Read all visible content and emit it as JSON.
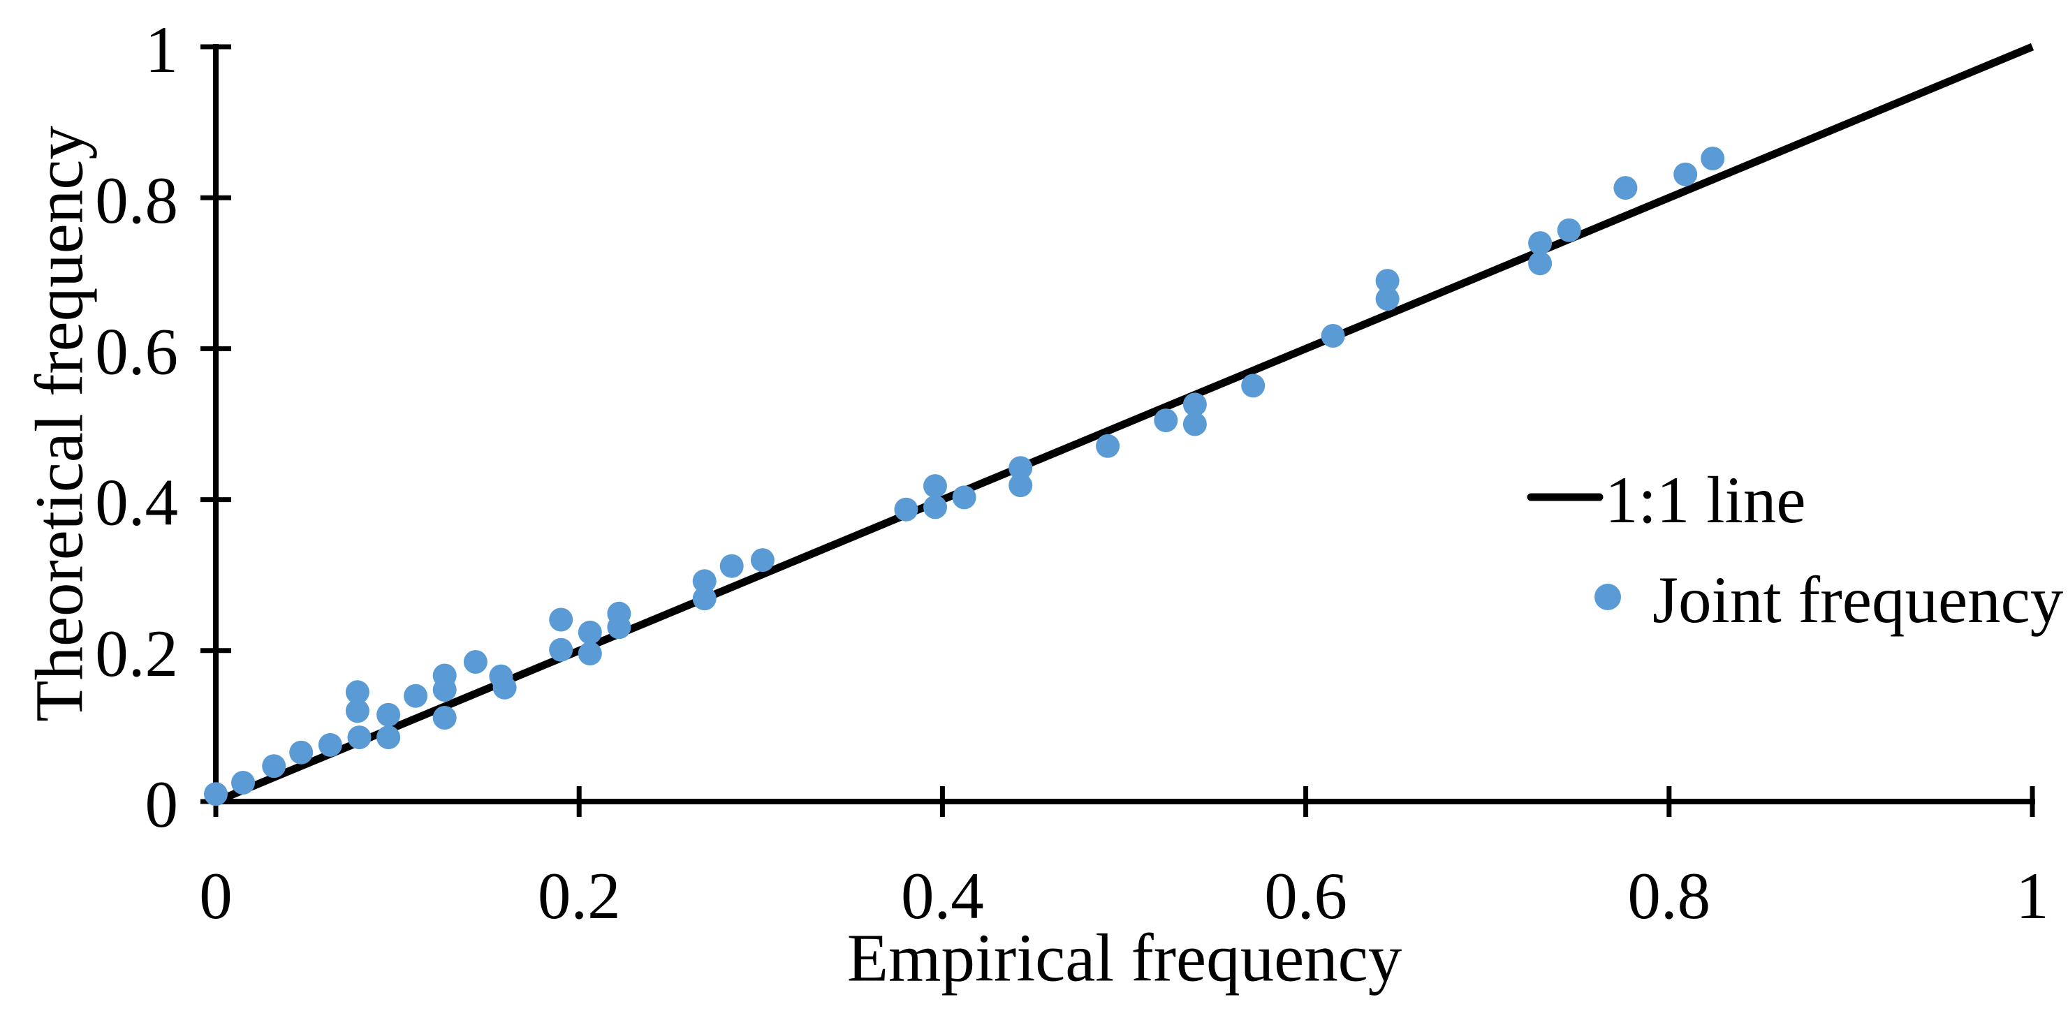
{
  "chart_data": {
    "type": "scatter",
    "title": "",
    "xlabel": "Empirical frequency",
    "ylabel": "Theoretical frequency",
    "xlim": [
      0,
      1
    ],
    "ylim": [
      0,
      1
    ],
    "x_ticks": [
      0,
      0.2,
      0.4,
      0.6,
      0.8,
      1
    ],
    "x_tick_labels": [
      "0",
      "0.2",
      "0.4",
      "0.6",
      "0.8",
      "1"
    ],
    "y_ticks": [
      0,
      0.2,
      0.4,
      0.6,
      0.8,
      1
    ],
    "y_tick_labels": [
      "0",
      "0.2",
      "0.4",
      "0.6",
      "0.8",
      "1"
    ],
    "grid": false,
    "legend_position": "middle-right",
    "colors": {
      "scatter": "#5B9BD5",
      "line": "#000000",
      "axis": "#000000"
    },
    "series": [
      {
        "name": "1:1 line",
        "type": "line",
        "color": "#000000",
        "points": [
          [
            0,
            0
          ],
          [
            1,
            1
          ]
        ]
      },
      {
        "name": "Joint frequency",
        "type": "scatter",
        "color": "#5B9BD5",
        "points": [
          [
            0.0,
            0.01
          ],
          [
            0.015,
            0.025
          ],
          [
            0.032,
            0.047
          ],
          [
            0.047,
            0.065
          ],
          [
            0.063,
            0.075
          ],
          [
            0.078,
            0.145
          ],
          [
            0.078,
            0.12
          ],
          [
            0.079,
            0.085
          ],
          [
            0.095,
            0.115
          ],
          [
            0.095,
            0.085
          ],
          [
            0.11,
            0.14
          ],
          [
            0.126,
            0.167
          ],
          [
            0.126,
            0.148
          ],
          [
            0.126,
            0.111
          ],
          [
            0.143,
            0.185
          ],
          [
            0.157,
            0.166
          ],
          [
            0.159,
            0.151
          ],
          [
            0.19,
            0.241
          ],
          [
            0.19,
            0.201
          ],
          [
            0.206,
            0.224
          ],
          [
            0.206,
            0.196
          ],
          [
            0.222,
            0.249
          ],
          [
            0.222,
            0.231
          ],
          [
            0.269,
            0.292
          ],
          [
            0.269,
            0.269
          ],
          [
            0.284,
            0.312
          ],
          [
            0.301,
            0.32
          ],
          [
            0.38,
            0.387
          ],
          [
            0.396,
            0.418
          ],
          [
            0.396,
            0.39
          ],
          [
            0.412,
            0.403
          ],
          [
            0.443,
            0.442
          ],
          [
            0.443,
            0.419
          ],
          [
            0.491,
            0.471
          ],
          [
            0.523,
            0.505
          ],
          [
            0.539,
            0.526
          ],
          [
            0.539,
            0.5
          ],
          [
            0.571,
            0.551
          ],
          [
            0.615,
            0.617
          ],
          [
            0.645,
            0.69
          ],
          [
            0.645,
            0.666
          ],
          [
            0.729,
            0.74
          ],
          [
            0.729,
            0.713
          ],
          [
            0.745,
            0.757
          ],
          [
            0.776,
            0.813
          ],
          [
            0.809,
            0.831
          ],
          [
            0.824,
            0.852
          ]
        ]
      }
    ]
  },
  "legend": {
    "items": [
      {
        "label": "1:1 line",
        "swatch": "line",
        "color": "#000000"
      },
      {
        "label": "Joint frequency",
        "swatch": "dot",
        "color": "#5B9BD5"
      }
    ]
  }
}
